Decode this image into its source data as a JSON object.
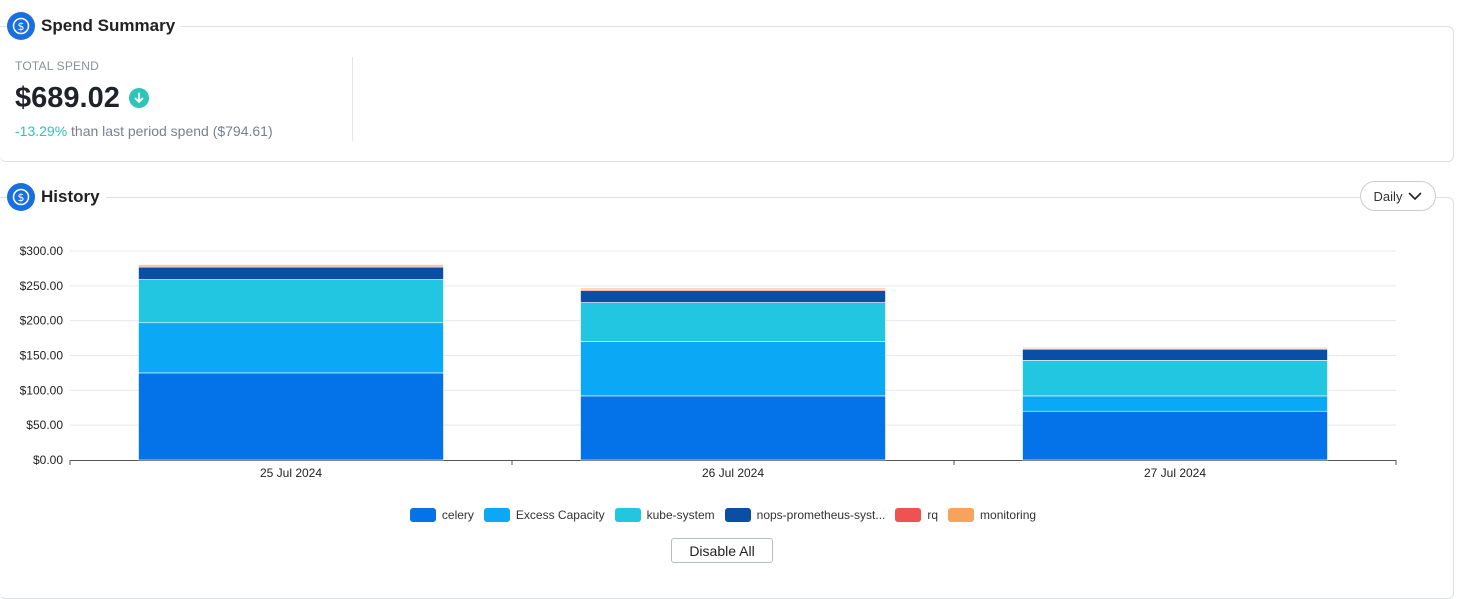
{
  "summary": {
    "title": "Spend Summary",
    "icon": "dollar-coin-icon",
    "total_label": "TOTAL SPEND",
    "total_value": "$689.02",
    "trend_icon": "arrow-down-circle-icon",
    "change_pct": "-13.29%",
    "change_text": " than last period spend ($794.61)"
  },
  "history": {
    "title": "History",
    "icon": "dollar-coin-icon",
    "period": "Daily",
    "disable_all_label": "Disable All"
  },
  "colors": {
    "accent": "#1a6fe0",
    "positive": "#2ec4b6"
  },
  "chart_data": {
    "type": "bar",
    "stacked": true,
    "categories": [
      "25 Jul 2024",
      "26 Jul 2024",
      "27 Jul 2024"
    ],
    "y_ticks": [
      "$0.00",
      "$50.00",
      "$100.00",
      "$150.00",
      "$200.00",
      "$250.00",
      "$300.00"
    ],
    "ylim": [
      0,
      300
    ],
    "grid": true,
    "legend_position": "bottom",
    "series": [
      {
        "name": "celery",
        "color": "#0472e8",
        "values": [
          125,
          92,
          70
        ]
      },
      {
        "name": "Excess Capacity",
        "color": "#0ba8f5",
        "values": [
          72,
          78,
          22
        ]
      },
      {
        "name": "kube-system",
        "color": "#23c6e0",
        "values": [
          62,
          56,
          51
        ]
      },
      {
        "name": "nops-prometheus-syst...",
        "color": "#0a4ea6",
        "values": [
          18,
          17,
          16
        ]
      },
      {
        "name": "rq",
        "color": "#f05252",
        "values": [
          1.5,
          1.5,
          1.0
        ]
      },
      {
        "name": "monitoring",
        "color": "#f7a35c",
        "values": [
          2.0,
          2.0,
          1.5
        ]
      }
    ]
  }
}
